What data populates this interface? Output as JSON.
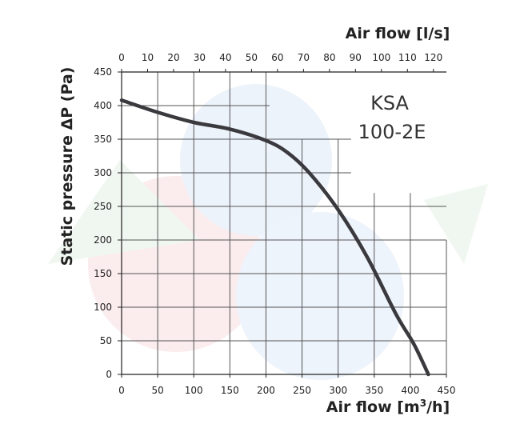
{
  "chart_data": {
    "type": "line",
    "model_line1": "KSA",
    "model_line2": "100-2E",
    "xlabel_bottom_prefix": "Air flow [m",
    "xlabel_bottom_sup": "3",
    "xlabel_bottom_suffix": "/h]",
    "xlabel_top": "Air flow [l/s]",
    "ylabel": "Static pressure  ΔP (Pa)",
    "xlim": [
      0,
      450
    ],
    "ylim": [
      0,
      450
    ],
    "x_ticks": [
      "0",
      "50",
      "100",
      "150",
      "200",
      "250",
      "300",
      "350",
      "400",
      "450"
    ],
    "y_ticks": [
      "0",
      "50",
      "100",
      "150",
      "200",
      "250",
      "300",
      "350",
      "400",
      "450"
    ],
    "top_ticks": [
      "0",
      "10",
      "20",
      "30",
      "40",
      "50",
      "60",
      "70",
      "80",
      "90",
      "100",
      "110",
      "120"
    ],
    "top_tick_unit_factor": 3.6,
    "grid": true,
    "curve_color": "#3a3a3e",
    "series": [
      {
        "x": [
          0,
          50,
          100,
          150,
          200,
          230,
          260,
          300,
          340,
          380,
          405,
          425
        ],
        "y": [
          408,
          390,
          375,
          365,
          348,
          330,
          300,
          245,
          175,
          90,
          45,
          0
        ]
      }
    ]
  }
}
